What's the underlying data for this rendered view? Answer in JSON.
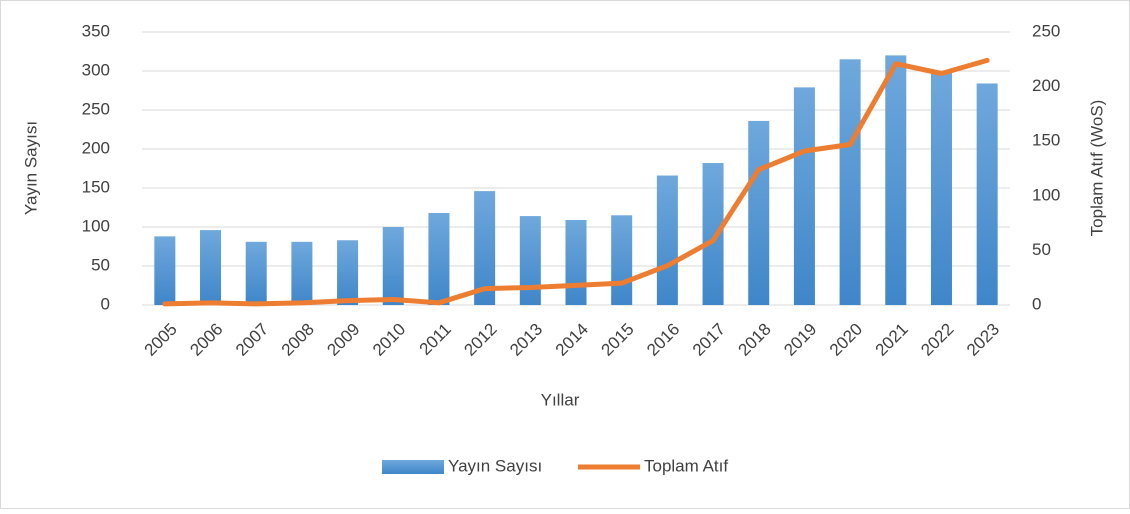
{
  "chart_data": {
    "type": "bar_line",
    "categories": [
      "2005",
      "2006",
      "2007",
      "2008",
      "2009",
      "2010",
      "2011",
      "2012",
      "2013",
      "2014",
      "2015",
      "2016",
      "2017",
      "2018",
      "2019",
      "2020",
      "2021",
      "2022",
      "2023"
    ],
    "xlabel": "Yıllar",
    "ylabel": "Yayın Sayısı",
    "y2label": "Toplam Atıf (WoS)",
    "series": [
      {
        "name": "Yayın Sayısı",
        "type": "bar",
        "color": "#5b9bd5",
        "values": [
          88,
          96,
          81,
          81,
          83,
          100,
          118,
          146,
          114,
          109,
          115,
          166,
          182,
          236,
          279,
          315,
          320,
          300,
          284
        ]
      },
      {
        "name": "Toplam Atıf",
        "type": "line",
        "axis": "y2",
        "color": "#ed7d31",
        "values": [
          1,
          2,
          1,
          2,
          4,
          5,
          2,
          15,
          16,
          18,
          20,
          36,
          59,
          124,
          141,
          147,
          221,
          212,
          224
        ]
      }
    ],
    "ylim": [
      0,
      350
    ],
    "yticks": [
      0,
      50,
      100,
      150,
      200,
      250,
      300,
      350
    ],
    "y2lim": [
      0,
      250
    ],
    "y2ticks": [
      0,
      50,
      100,
      150,
      200,
      250
    ],
    "grid": true,
    "legend": "bottom"
  }
}
